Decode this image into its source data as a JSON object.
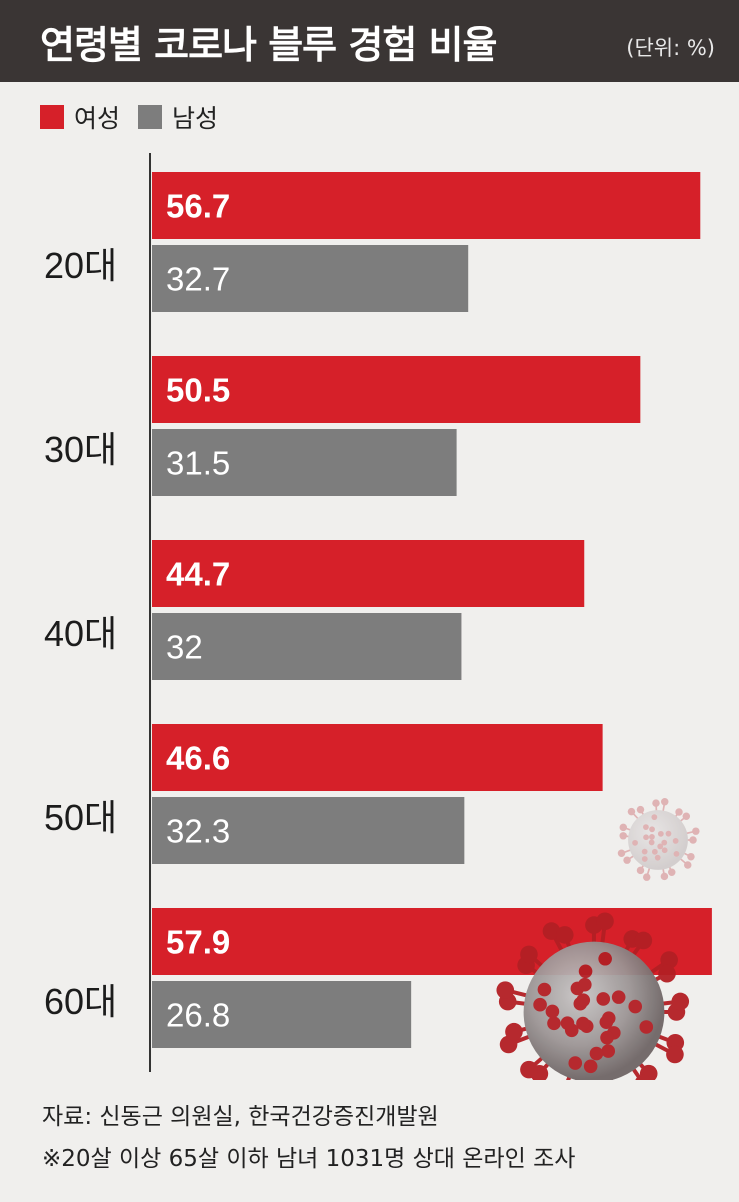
{
  "header": {
    "title": "연령별 코로나 블루 경험 비율",
    "unit": "(단위: %)"
  },
  "colors": {
    "female": "#d62029",
    "male": "#7d7d7d",
    "header_bg": "#3a3534",
    "background": "#f0efed"
  },
  "footer": {
    "source": "자료: 신동근 의원실, 한국건강증진개발원",
    "note": "※20살 이상 65살 이하 남녀 1031명 상대 온라인 조사"
  },
  "chart_data": {
    "type": "bar",
    "orientation": "horizontal",
    "title": "연령별 코로나 블루 경험 비율",
    "unit": "(단위: %)",
    "categories": [
      "20대",
      "30대",
      "40대",
      "50대",
      "60대"
    ],
    "series": [
      {
        "name": "여성",
        "color": "#d62029",
        "values": [
          56.7,
          50.5,
          44.7,
          46.6,
          57.9
        ],
        "labels": [
          "56.7",
          "50.5",
          "44.7",
          "46.6",
          "57.9"
        ]
      },
      {
        "name": "남성",
        "color": "#7d7d7d",
        "values": [
          32.7,
          31.5,
          32,
          32.3,
          26.8
        ],
        "labels": [
          "32.7",
          "31.5",
          "32",
          "32.3",
          "26.8"
        ]
      }
    ],
    "xlim": [
      0,
      58
    ],
    "legend": "top-left",
    "grid": false
  }
}
